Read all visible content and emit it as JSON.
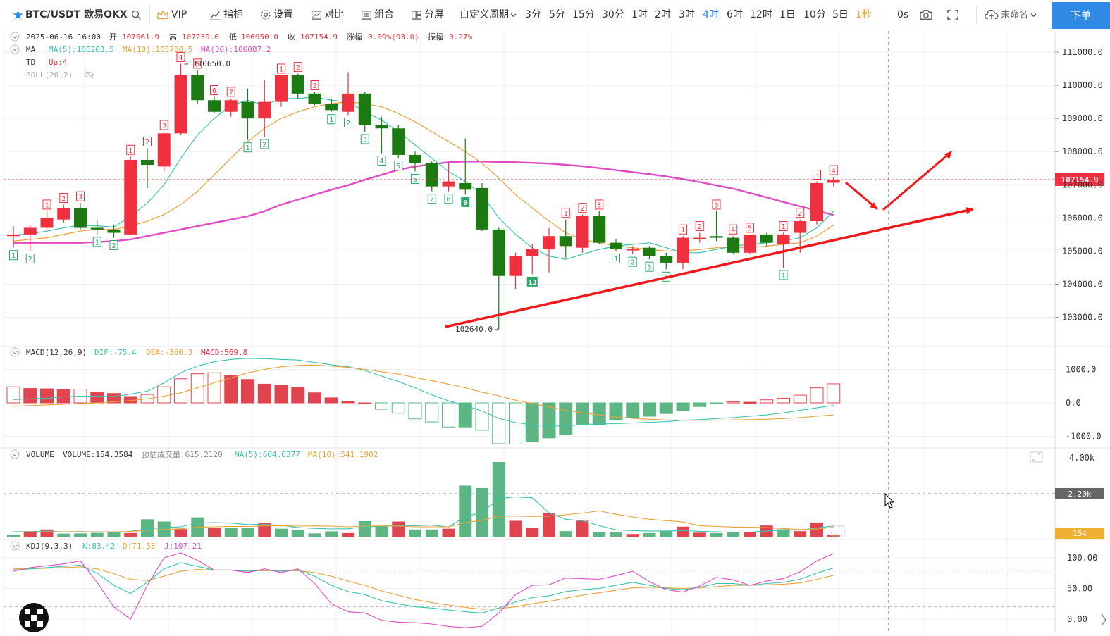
{
  "toolbar": {
    "symbol": "BTC/USDT 欧易OKX",
    "vip": "VIP",
    "indicators": "指标",
    "settings": "设置",
    "compare": "对比",
    "combine": "组合",
    "split": "分屏",
    "custom_period": "自定义周期",
    "periods": [
      "3分",
      "5分",
      "15分",
      "30分",
      "1时",
      "2时",
      "3时",
      "4时",
      "6时",
      "12时",
      "1日",
      "10分",
      "5日",
      "1秒"
    ],
    "active_period": "4时",
    "countdown": "0s",
    "cloud_label": "未命名",
    "order_button": "下单"
  },
  "colors": {
    "up": "#f0303f",
    "down": "#1d7a12",
    "ma5": "#3cc1b0",
    "ma10": "#e8a33b",
    "ma30": "#e04bc4",
    "accent": "#2f8ae6",
    "annotation": "#f01818"
  },
  "main_pane": {
    "info_line": {
      "date": "2025-06-16 16:00",
      "open_label": "开",
      "open": "107061.9",
      "high_label": "高",
      "high": "107239.0",
      "low_label": "低",
      "low": "106950.0",
      "close_label": "收",
      "close": "107154.9",
      "change_label": "涨幅",
      "change": "0.09%(93.0)",
      "amplitude_label": "振幅",
      "amplitude": "0.27%"
    },
    "ma_line": {
      "name": "MA",
      "ma5": "MA(5):106203.5",
      "ma10": "MA(10):105780.5",
      "ma30": "MA(30):106087.2"
    },
    "td_line": {
      "name": "TD",
      "value": "Up:4"
    },
    "boll_line": "BOLL(20,2)",
    "y_ticks": [
      "111000.0",
      "110000.0",
      "109000.0",
      "108000.0",
      "107000.0",
      "106000.0",
      "105000.0",
      "104000.0",
      "103000.0"
    ],
    "current_price": "107154.9",
    "high_label": "110650.0",
    "low_label": "102640.0",
    "high_arrow": "←",
    "low_arrow": "→"
  },
  "macd_pane": {
    "label": "MACD(12,26,9)",
    "dif": "DIF:-75.4",
    "dea": "DEA:-360.3",
    "macd": "MACD:569.8",
    "y_ticks": [
      "1000.0",
      "0.0",
      "-1000.0"
    ]
  },
  "volume_pane": {
    "label": "VOLUME",
    "volume": "VOLUME:154.3584",
    "estimated": "预估成交量:615.2120",
    "ma5": "MA(5):604.6377",
    "ma10": "MA(10):541.1902",
    "y_ticks": [
      "4.00k",
      "2.20k",
      "154"
    ]
  },
  "kdj_pane": {
    "label": "KDJ(9,3,3)",
    "k": "K:83.42",
    "d": "D:71.53",
    "j": "J:107.21",
    "y_ticks": [
      "100.00",
      "50.00",
      "0.00"
    ]
  },
  "chart_data": {
    "type": "candlestick",
    "symbol": "BTC/USDT",
    "interval": "4h",
    "candles": [
      {
        "o": 105450,
        "h": 105750,
        "l": 105100,
        "c": 105500
      },
      {
        "o": 105500,
        "h": 105800,
        "l": 105000,
        "c": 105700
      },
      {
        "o": 105700,
        "h": 106200,
        "l": 105600,
        "c": 106000
      },
      {
        "o": 105950,
        "h": 106400,
        "l": 105850,
        "c": 106300
      },
      {
        "o": 106300,
        "h": 106450,
        "l": 105650,
        "c": 105700
      },
      {
        "o": 105700,
        "h": 105950,
        "l": 105500,
        "c": 105650
      },
      {
        "o": 105650,
        "h": 105800,
        "l": 105400,
        "c": 105550
      },
      {
        "o": 105500,
        "h": 107850,
        "l": 105500,
        "c": 107750
      },
      {
        "o": 107750,
        "h": 108100,
        "l": 106900,
        "c": 107600
      },
      {
        "o": 107550,
        "h": 108600,
        "l": 107400,
        "c": 108550
      },
      {
        "o": 108550,
        "h": 110650,
        "l": 108500,
        "c": 110300
      },
      {
        "o": 110300,
        "h": 110450,
        "l": 109450,
        "c": 109550
      },
      {
        "o": 109550,
        "h": 109650,
        "l": 109150,
        "c": 109200
      },
      {
        "o": 109200,
        "h": 109600,
        "l": 109050,
        "c": 109550
      },
      {
        "o": 109500,
        "h": 109900,
        "l": 108350,
        "c": 109000
      },
      {
        "o": 109000,
        "h": 110150,
        "l": 108450,
        "c": 109500
      },
      {
        "o": 109500,
        "h": 110300,
        "l": 109350,
        "c": 110300
      },
      {
        "o": 110300,
        "h": 110350,
        "l": 109600,
        "c": 109750
      },
      {
        "o": 109750,
        "h": 109800,
        "l": 109400,
        "c": 109450
      },
      {
        "o": 109450,
        "h": 109600,
        "l": 109200,
        "c": 109250
      },
      {
        "o": 109200,
        "h": 110400,
        "l": 109100,
        "c": 109750
      },
      {
        "o": 109750,
        "h": 109800,
        "l": 108600,
        "c": 108800
      },
      {
        "o": 108800,
        "h": 109050,
        "l": 107950,
        "c": 108700
      },
      {
        "o": 108700,
        "h": 108800,
        "l": 107800,
        "c": 107900
      },
      {
        "o": 107900,
        "h": 108000,
        "l": 107400,
        "c": 107650
      },
      {
        "o": 107650,
        "h": 107700,
        "l": 106800,
        "c": 106950
      },
      {
        "o": 106950,
        "h": 107650,
        "l": 106800,
        "c": 107100
      },
      {
        "o": 107050,
        "h": 108400,
        "l": 106700,
        "c": 106850
      },
      {
        "o": 106900,
        "h": 107050,
        "l": 105600,
        "c": 105650
      },
      {
        "o": 105650,
        "h": 105700,
        "l": 102640,
        "c": 104250
      },
      {
        "o": 104250,
        "h": 104950,
        "l": 103850,
        "c": 104850
      },
      {
        "o": 104850,
        "h": 105200,
        "l": 104300,
        "c": 105050
      },
      {
        "o": 105050,
        "h": 105700,
        "l": 104350,
        "c": 105450
      },
      {
        "o": 105450,
        "h": 105950,
        "l": 104800,
        "c": 105150
      },
      {
        "o": 105100,
        "h": 106100,
        "l": 104950,
        "c": 106050
      },
      {
        "o": 106050,
        "h": 106200,
        "l": 105200,
        "c": 105250
      },
      {
        "o": 105250,
        "h": 105350,
        "l": 105000,
        "c": 105050
      },
      {
        "o": 105050,
        "h": 105150,
        "l": 104900,
        "c": 105050
      },
      {
        "o": 105100,
        "h": 105150,
        "l": 104750,
        "c": 104850
      },
      {
        "o": 104850,
        "h": 104950,
        "l": 104450,
        "c": 104650
      },
      {
        "o": 104650,
        "h": 105450,
        "l": 104450,
        "c": 105400
      },
      {
        "o": 105350,
        "h": 105550,
        "l": 105250,
        "c": 105400
      },
      {
        "o": 105450,
        "h": 106200,
        "l": 105300,
        "c": 105400
      },
      {
        "o": 105400,
        "h": 105450,
        "l": 104900,
        "c": 104950
      },
      {
        "o": 104950,
        "h": 105500,
        "l": 104900,
        "c": 105500
      },
      {
        "o": 105500,
        "h": 105550,
        "l": 105150,
        "c": 105250
      },
      {
        "o": 105200,
        "h": 105550,
        "l": 104500,
        "c": 105500
      },
      {
        "o": 105550,
        "h": 105950,
        "l": 104950,
        "c": 105900
      },
      {
        "o": 105900,
        "h": 107100,
        "l": 105800,
        "c": 107050
      },
      {
        "o": 107060,
        "h": 107239,
        "l": 106950,
        "c": 107155
      }
    ],
    "ma5": [
      105480,
      105520,
      105600,
      105700,
      105780,
      105760,
      105720,
      106050,
      106450,
      107000,
      107800,
      108500,
      109000,
      109400,
      109550,
      109400,
      109600,
      109600,
      109650,
      109550,
      109500,
      109200,
      108950,
      108600,
      108200,
      107800,
      107400,
      107100,
      106700,
      106000,
      105500,
      105100,
      104850,
      104750,
      104900,
      105050,
      105150,
      105200,
      105250,
      105100,
      104950,
      104950,
      105050,
      105150,
      105200,
      105250,
      105300,
      105400,
      105700,
      106200
    ],
    "ma10": [
      105300,
      105350,
      105400,
      105500,
      105600,
      105650,
      105650,
      105750,
      105900,
      106100,
      106400,
      106800,
      107300,
      107800,
      108300,
      108700,
      109000,
      109200,
      109350,
      109450,
      109500,
      109450,
      109350,
      109150,
      108900,
      108600,
      108300,
      108000,
      107650,
      107200,
      106700,
      106300,
      105900,
      105550,
      105350,
      105250,
      105150,
      105100,
      105050,
      105000,
      105000,
      105050,
      105100,
      105100,
      105100,
      105150,
      105200,
      105250,
      105450,
      105780
    ],
    "ma30": [
      105250,
      105250,
      105250,
      105250,
      105250,
      105270,
      105300,
      105350,
      105450,
      105550,
      105650,
      105750,
      105850,
      105950,
      106050,
      106200,
      106400,
      106550,
      106700,
      106850,
      106990,
      107150,
      107300,
      107450,
      107550,
      107620,
      107680,
      107700,
      107700,
      107690,
      107680,
      107660,
      107640,
      107600,
      107560,
      107500,
      107440,
      107380,
      107320,
      107250,
      107170,
      107080,
      106980,
      106880,
      106750,
      106620,
      106480,
      106350,
      106220,
      106087
    ],
    "td": [
      {
        "i": 0,
        "n": "1",
        "pos": "below"
      },
      {
        "i": 1,
        "n": "2",
        "pos": "below"
      },
      {
        "i": 2,
        "n": "1",
        "pos": "above"
      },
      {
        "i": 3,
        "n": "2",
        "pos": "above"
      },
      {
        "i": 4,
        "n": "3",
        "pos": "above"
      },
      {
        "i": 5,
        "n": "1",
        "pos": "below"
      },
      {
        "i": 6,
        "n": "2",
        "pos": "below"
      },
      {
        "i": 7,
        "n": "1",
        "pos": "above"
      },
      {
        "i": 8,
        "n": "2",
        "pos": "above"
      },
      {
        "i": 9,
        "n": "3",
        "pos": "above"
      },
      {
        "i": 10,
        "n": "4",
        "pos": "above"
      },
      {
        "i": 11,
        "n": "5",
        "pos": "above"
      },
      {
        "i": 12,
        "n": "6",
        "pos": "above"
      },
      {
        "i": 13,
        "n": "7",
        "pos": "above"
      },
      {
        "i": 14,
        "n": "1",
        "pos": "below"
      },
      {
        "i": 15,
        "n": "2",
        "pos": "below"
      },
      {
        "i": 16,
        "n": "1",
        "pos": "above"
      },
      {
        "i": 17,
        "n": "2",
        "pos": "above"
      },
      {
        "i": 18,
        "n": "3",
        "pos": "above"
      },
      {
        "i": 19,
        "n": "1",
        "pos": "below"
      },
      {
        "i": 20,
        "n": "2",
        "pos": "below"
      },
      {
        "i": 21,
        "n": "3",
        "pos": "below"
      },
      {
        "i": 22,
        "n": "4",
        "pos": "below"
      },
      {
        "i": 23,
        "n": "5",
        "pos": "below"
      },
      {
        "i": 24,
        "n": "6",
        "pos": "below"
      },
      {
        "i": 25,
        "n": "7",
        "pos": "below"
      },
      {
        "i": 26,
        "n": "8",
        "pos": "below"
      },
      {
        "i": 27,
        "n": "9",
        "pos": "below",
        "strong": true
      },
      {
        "i": 31,
        "n": "13",
        "pos": "below",
        "strong": true
      },
      {
        "i": 33,
        "n": "1",
        "pos": "above"
      },
      {
        "i": 34,
        "n": "2",
        "pos": "above"
      },
      {
        "i": 35,
        "n": "3",
        "pos": "above"
      },
      {
        "i": 36,
        "n": "1",
        "pos": "below"
      },
      {
        "i": 37,
        "n": "2",
        "pos": "below"
      },
      {
        "i": 38,
        "n": "3",
        "pos": "below"
      },
      {
        "i": 39,
        "n": "4",
        "pos": "below"
      },
      {
        "i": 40,
        "n": "1",
        "pos": "above"
      },
      {
        "i": 41,
        "n": "2",
        "pos": "above"
      },
      {
        "i": 42,
        "n": "3",
        "pos": "above"
      },
      {
        "i": 43,
        "n": "4",
        "pos": "above"
      },
      {
        "i": 44,
        "n": "5",
        "pos": "above"
      },
      {
        "i": 46,
        "n": "1",
        "pos": "below"
      },
      {
        "i": 46,
        "n": "1",
        "pos": "above"
      },
      {
        "i": 47,
        "n": "2",
        "pos": "above"
      },
      {
        "i": 48,
        "n": "3",
        "pos": "above"
      },
      {
        "i": 49,
        "n": "4",
        "pos": "above"
      }
    ],
    "macd_hist": [
      480,
      430,
      420,
      390,
      410,
      320,
      280,
      190,
      250,
      480,
      720,
      870,
      900,
      820,
      700,
      560,
      520,
      460,
      300,
      150,
      50,
      0,
      -190,
      -310,
      -480,
      -570,
      -720,
      -720,
      -820,
      -1220,
      -1230,
      -1170,
      -1050,
      -950,
      -650,
      -650,
      -500,
      -450,
      -400,
      -320,
      -240,
      -110,
      -20,
      30,
      20,
      90,
      140,
      230,
      450,
      569.8
    ],
    "macd_dif": [
      100,
      120,
      140,
      180,
      200,
      200,
      190,
      260,
      350,
      600,
      900,
      1100,
      1230,
      1300,
      1330,
      1320,
      1300,
      1280,
      1210,
      1140,
      1080,
      970,
      800,
      640,
      450,
      240,
      60,
      -80,
      -240,
      -460,
      -590,
      -650,
      -680,
      -700,
      -640,
      -630,
      -620,
      -600,
      -580,
      -560,
      -520,
      -500,
      -470,
      -440,
      -400,
      -360,
      -300,
      -220,
      -150,
      -75.4
    ],
    "macd_dea": [
      -100,
      -80,
      -60,
      -40,
      -20,
      0,
      30,
      70,
      120,
      200,
      300,
      450,
      600,
      750,
      900,
      1000,
      1080,
      1120,
      1130,
      1100,
      1060,
      1000,
      930,
      860,
      760,
      660,
      560,
      450,
      320,
      210,
      80,
      -20,
      -120,
      -220,
      -300,
      -360,
      -420,
      -460,
      -490,
      -510,
      -520,
      -520,
      -520,
      -510,
      -500,
      -490,
      -470,
      -440,
      -400,
      -360.3
    ],
    "volume": [
      120,
      280,
      420,
      200,
      210,
      240,
      280,
      230,
      960,
      840,
      440,
      1060,
      490,
      490,
      490,
      760,
      460,
      380,
      210,
      320,
      230,
      860,
      580,
      840,
      420,
      420,
      460,
      2750,
      2620,
      4000,
      880,
      520,
      1290,
      330,
      880,
      270,
      270,
      180,
      230,
      330,
      570,
      250,
      230,
      270,
      280,
      630,
      430,
      330,
      790,
      154.36
    ],
    "volume_up": [
      false,
      true,
      true,
      false,
      false,
      false,
      false,
      true,
      false,
      false,
      true,
      false,
      true,
      false,
      false,
      true,
      false,
      false,
      false,
      false,
      true,
      false,
      false,
      true,
      false,
      false,
      true,
      false,
      false,
      false,
      true,
      true,
      true,
      false,
      true,
      false,
      false,
      true,
      false,
      false,
      true,
      true,
      false,
      false,
      true,
      true,
      false,
      true,
      true,
      true
    ],
    "vol_ma5": [
      300,
      310,
      330,
      300,
      310,
      290,
      270,
      320,
      460,
      520,
      560,
      760,
      780,
      760,
      680,
      690,
      640,
      520,
      480,
      450,
      460,
      560,
      580,
      640,
      620,
      650,
      550,
      1100,
      1320,
      2060,
      2150,
      2100,
      1300,
      960,
      880,
      620,
      400,
      360,
      340,
      340,
      360,
      320,
      300,
      270,
      280,
      340,
      380,
      390,
      500,
      604.64
    ],
    "vol_ma10": [
      280,
      290,
      300,
      300,
      300,
      300,
      300,
      310,
      380,
      420,
      460,
      540,
      560,
      580,
      580,
      610,
      620,
      600,
      610,
      600,
      560,
      600,
      610,
      600,
      560,
      560,
      560,
      780,
      900,
      1130,
      1130,
      1110,
      1120,
      1200,
      1290,
      1400,
      1230,
      1080,
      960,
      890,
      820,
      620,
      580,
      550,
      540,
      520,
      470,
      420,
      440,
      541.19
    ],
    "kdj_k": [
      80,
      82,
      84,
      86,
      88,
      75,
      55,
      42,
      60,
      82,
      92,
      86,
      80,
      80,
      78,
      80,
      78,
      80,
      70,
      55,
      45,
      40,
      30,
      25,
      20,
      18,
      15,
      12,
      10,
      18,
      28,
      35,
      38,
      45,
      48,
      50,
      55,
      60,
      55,
      50,
      48,
      52,
      58,
      58,
      55,
      58,
      60,
      65,
      75,
      83.42
    ],
    "kdj_d": [
      82,
      82,
      83,
      84,
      85,
      82,
      74,
      65,
      63,
      70,
      78,
      81,
      80,
      80,
      79,
      79,
      79,
      79,
      76,
      70,
      62,
      55,
      46,
      39,
      32,
      27,
      23,
      19,
      16,
      17,
      20,
      25,
      29,
      34,
      39,
      43,
      47,
      51,
      52,
      51,
      50,
      51,
      53,
      55,
      55,
      56,
      57,
      59,
      65,
      71.53
    ],
    "kdj_j": [
      78,
      84,
      87,
      90,
      95,
      60,
      20,
      0,
      55,
      100,
      108,
      96,
      80,
      80,
      76,
      82,
      76,
      82,
      58,
      25,
      12,
      10,
      -2,
      -5,
      -6,
      -8,
      -12,
      -14,
      -12,
      10,
      40,
      55,
      56,
      67,
      66,
      65,
      71,
      78,
      61,
      48,
      44,
      54,
      68,
      64,
      55,
      62,
      66,
      77,
      95,
      107.21
    ]
  }
}
